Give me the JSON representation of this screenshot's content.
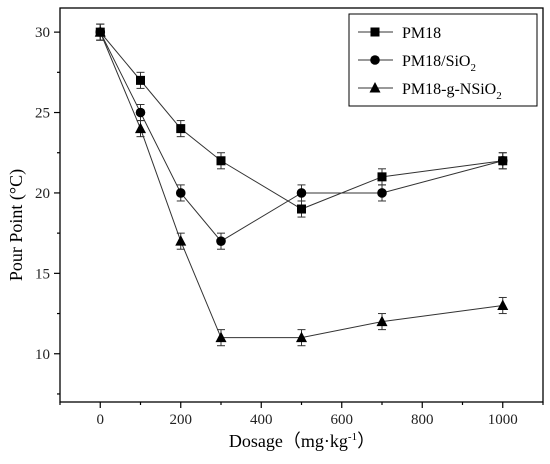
{
  "chart_data": {
    "type": "line",
    "xlabel": "Dosage（mg·kg",
    "xlabel_sup": "-1",
    "xlabel_close": "）",
    "ylabel": "Pour Point (°C)",
    "xlim": [
      -100,
      1100
    ],
    "ylim": [
      7,
      31.5
    ],
    "x_ticks": [
      0,
      200,
      400,
      600,
      800,
      1000
    ],
    "x_minor_ticks": [
      -100,
      100,
      300,
      500,
      700,
      900,
      1100
    ],
    "y_ticks": [
      10,
      15,
      20,
      25,
      30
    ],
    "x": [
      0,
      100,
      200,
      300,
      500,
      700,
      1000
    ],
    "legend_position": "top-right",
    "series": [
      {
        "name": "PM18",
        "legend": {
          "base": "PM18",
          "sub": ""
        },
        "marker": "square",
        "values": [
          30,
          27,
          24,
          22,
          19,
          21,
          22
        ],
        "error": [
          0.5,
          0.5,
          0.5,
          0.5,
          0.5,
          0.5,
          0.5
        ]
      },
      {
        "name": "PM18/SiO2",
        "legend": {
          "base": "PM18/SiO",
          "sub": "2"
        },
        "marker": "circle",
        "values": [
          30,
          25,
          20,
          17,
          20,
          20,
          22
        ],
        "error": [
          0.5,
          0.5,
          0.5,
          0.5,
          0.5,
          0.5,
          0.5
        ]
      },
      {
        "name": "PM18-g-NSiO2",
        "legend": {
          "base": "PM18-g-NSiO",
          "sub": "2"
        },
        "marker": "triangle",
        "values": [
          30,
          24,
          17,
          11,
          11,
          12,
          13
        ],
        "error": [
          0.5,
          0.5,
          0.5,
          0.5,
          0.5,
          0.5,
          0.5
        ]
      }
    ]
  }
}
